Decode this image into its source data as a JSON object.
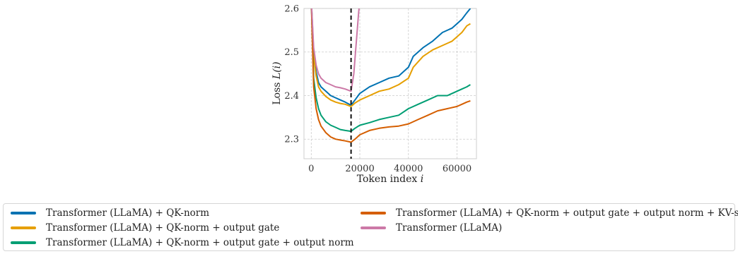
{
  "chart_data": {
    "type": "line",
    "xlabel_text": "Token index",
    "xlabel_var": "i",
    "ylabel_text": "Loss",
    "ylabel_var": "L(i)",
    "xlim": [
      -3000,
      68000
    ],
    "ylim": [
      2.255,
      2.6
    ],
    "xticks": [
      0,
      20000,
      40000,
      60000
    ],
    "xtick_labels": [
      "0",
      "20000",
      "40000",
      "60000"
    ],
    "yticks": [
      2.3,
      2.4,
      2.5,
      2.6
    ],
    "ytick_labels": [
      "2.3",
      "2.4",
      "2.5",
      "2.6"
    ],
    "vline_x": 16384,
    "grid": true,
    "legend_position": "bottom",
    "series": [
      {
        "name": "Transformer (LLaMA) + QK-norm",
        "color": "#0072B2",
        "x": [
          0,
          1000,
          2000,
          3000,
          4000,
          6000,
          8000,
          10000,
          12000,
          14000,
          16384,
          18000,
          20000,
          24000,
          28000,
          32000,
          36000,
          38000,
          40000,
          42000,
          46000,
          50000,
          54000,
          58000,
          60000,
          62000,
          64000,
          65500
        ],
        "y": [
          2.62,
          2.5,
          2.455,
          2.43,
          2.42,
          2.41,
          2.4,
          2.395,
          2.39,
          2.385,
          2.378,
          2.39,
          2.405,
          2.42,
          2.43,
          2.44,
          2.445,
          2.455,
          2.465,
          2.49,
          2.51,
          2.525,
          2.545,
          2.555,
          2.565,
          2.575,
          2.59,
          2.6
        ]
      },
      {
        "name": "Transformer (LLaMA) + QK-norm + output gate",
        "color": "#E69F00",
        "x": [
          0,
          1000,
          2000,
          3000,
          4000,
          6000,
          8000,
          10000,
          12000,
          14000,
          16384,
          18000,
          20000,
          24000,
          28000,
          32000,
          36000,
          40000,
          42000,
          46000,
          50000,
          54000,
          58000,
          60000,
          62000,
          64000,
          65500
        ],
        "y": [
          2.62,
          2.49,
          2.445,
          2.42,
          2.41,
          2.398,
          2.39,
          2.385,
          2.382,
          2.38,
          2.375,
          2.383,
          2.39,
          2.4,
          2.41,
          2.415,
          2.425,
          2.44,
          2.465,
          2.49,
          2.505,
          2.515,
          2.525,
          2.535,
          2.545,
          2.56,
          2.565
        ]
      },
      {
        "name": "Transformer (LLaMA) + QK-norm + output gate + output norm",
        "color": "#009E73",
        "x": [
          0,
          1000,
          2000,
          3000,
          4000,
          6000,
          8000,
          10000,
          12000,
          14000,
          16384,
          18000,
          20000,
          24000,
          28000,
          32000,
          36000,
          40000,
          44000,
          48000,
          52000,
          56000,
          60000,
          62000,
          64000,
          65500
        ],
        "y": [
          2.62,
          2.44,
          2.395,
          2.37,
          2.355,
          2.34,
          2.332,
          2.327,
          2.322,
          2.32,
          2.318,
          2.325,
          2.332,
          2.338,
          2.345,
          2.35,
          2.355,
          2.37,
          2.38,
          2.39,
          2.4,
          2.4,
          2.41,
          2.415,
          2.42,
          2.425
        ]
      },
      {
        "name": "Transformer (LLaMA) + QK-norm + output gate + output norm + KV-shift",
        "color": "#D55E00",
        "x": [
          0,
          1000,
          2000,
          3000,
          4000,
          6000,
          8000,
          10000,
          12000,
          14000,
          16384,
          18000,
          20000,
          24000,
          28000,
          32000,
          36000,
          40000,
          44000,
          48000,
          52000,
          56000,
          60000,
          62000,
          64000,
          65500
        ],
        "y": [
          2.62,
          2.42,
          2.37,
          2.345,
          2.33,
          2.315,
          2.305,
          2.3,
          2.298,
          2.296,
          2.293,
          2.3,
          2.31,
          2.32,
          2.325,
          2.328,
          2.33,
          2.335,
          2.345,
          2.355,
          2.365,
          2.37,
          2.375,
          2.38,
          2.385,
          2.388
        ]
      },
      {
        "name": "Transformer (LLaMA)",
        "color": "#CC79A7",
        "x": [
          0,
          1000,
          2000,
          3000,
          4000,
          6000,
          8000,
          10000,
          12000,
          14000,
          16384,
          17500,
          18500,
          19500,
          20000
        ],
        "y": [
          2.62,
          2.51,
          2.47,
          2.45,
          2.44,
          2.43,
          2.425,
          2.42,
          2.418,
          2.415,
          2.41,
          2.45,
          2.52,
          2.59,
          2.62
        ]
      }
    ]
  }
}
